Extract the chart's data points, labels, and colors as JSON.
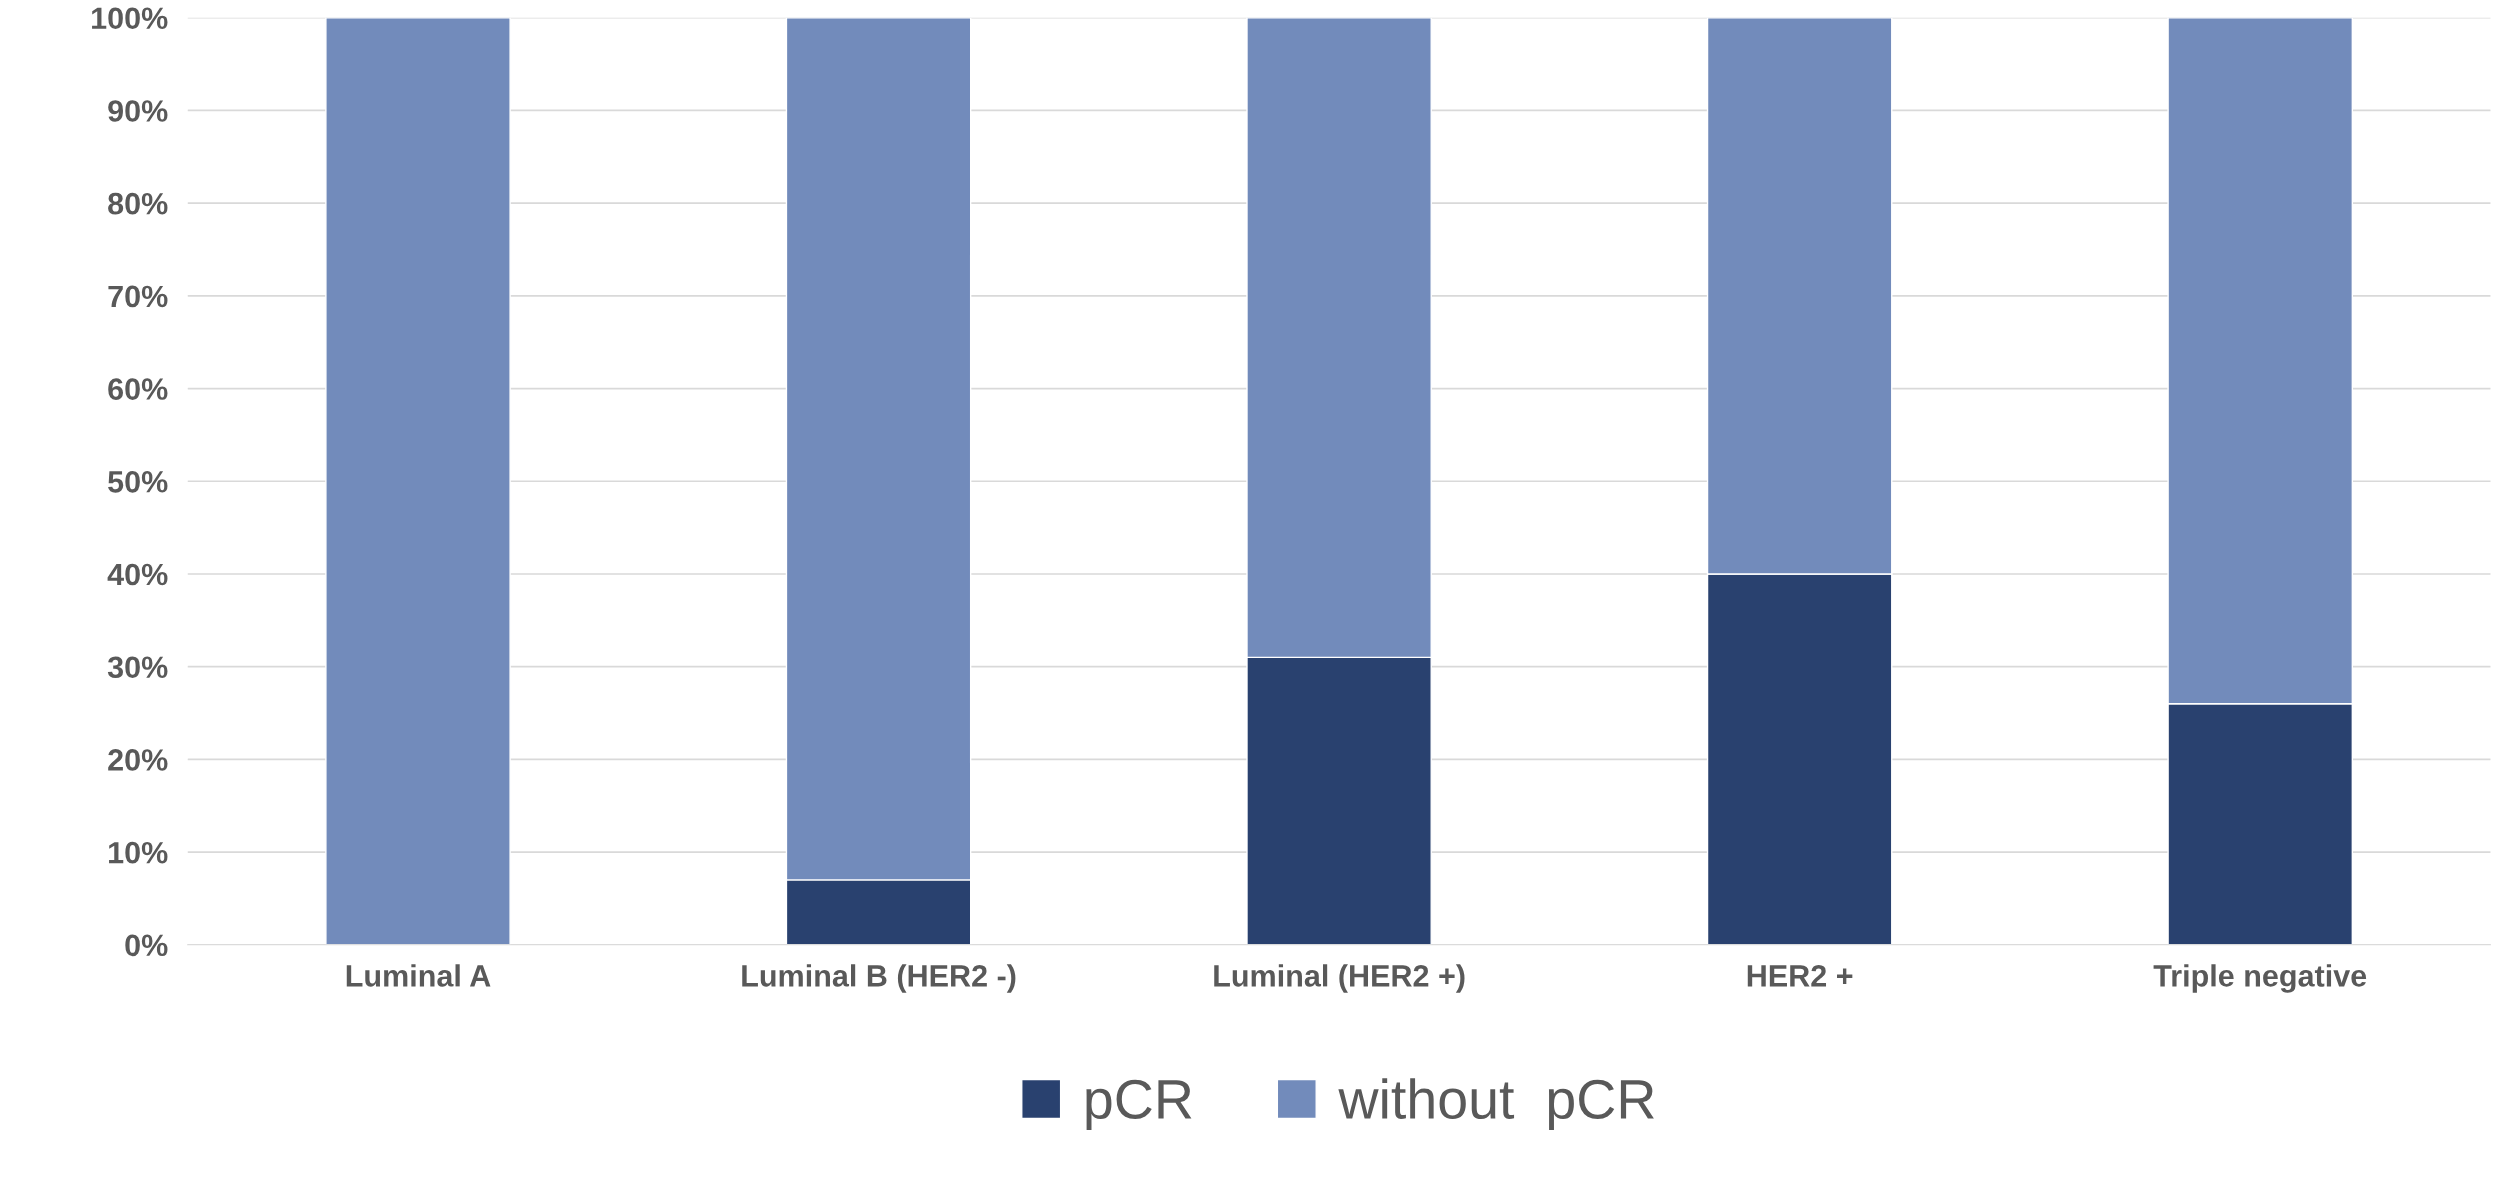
{
  "chart_data": {
    "type": "bar",
    "stacked": true,
    "categories": [
      "Luminal A",
      "Luminal B (HER2 -)",
      "Luminal (HER2 +)",
      "HER2 +",
      "Triple negative"
    ],
    "series": [
      {
        "name": "pCR",
        "color": "#29416f",
        "values": [
          0,
          7,
          31,
          40,
          26
        ]
      },
      {
        "name": "without  pCR",
        "color": "#728bbb",
        "values": [
          100,
          93,
          69,
          60,
          74
        ]
      }
    ],
    "ylim": [
      0,
      100
    ],
    "yticks": [
      {
        "value": 0,
        "label": "0%"
      },
      {
        "value": 10,
        "label": "10%"
      },
      {
        "value": 20,
        "label": "20%"
      },
      {
        "value": 30,
        "label": "30%"
      },
      {
        "value": 40,
        "label": "40%"
      },
      {
        "value": 50,
        "label": "50%"
      },
      {
        "value": 60,
        "label": "60%"
      },
      {
        "value": 70,
        "label": "70%"
      },
      {
        "value": 80,
        "label": "80%"
      },
      {
        "value": 90,
        "label": "90%"
      },
      {
        "value": 100,
        "label": "100%"
      }
    ],
    "grid": "y",
    "legend": "bottom"
  }
}
